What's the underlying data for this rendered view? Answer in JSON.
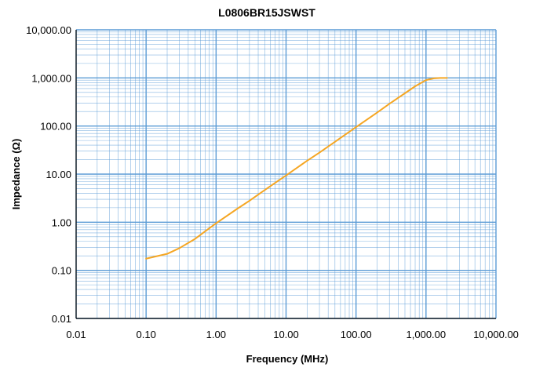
{
  "chart_data": {
    "type": "line",
    "title": "L0806BR15JSWST",
    "xlabel": "Frequency (MHz)",
    "ylabel": "Impedance (Ω)",
    "x_scale": "log",
    "y_scale": "log",
    "xlim": [
      0.01,
      10000
    ],
    "ylim": [
      0.01,
      10000
    ],
    "x_ticks": [
      0.01,
      0.1,
      1,
      10,
      100,
      1000,
      10000
    ],
    "x_tick_labels": [
      "0.01",
      "0.10",
      "1.00",
      "10.00",
      "100.00",
      "1,000.00",
      "10,000.00"
    ],
    "y_ticks": [
      0.01,
      0.1,
      1,
      10,
      100,
      1000,
      10000
    ],
    "y_tick_labels": [
      "0.01",
      "0.10",
      "1.00",
      "10.00",
      "100.00",
      "1,000.00",
      "10,000.00"
    ],
    "grid": true,
    "grid_color": "#5b9bd5",
    "series_color": "#f5a623",
    "series": [
      {
        "x": [
          0.1,
          0.2,
          0.3,
          0.5,
          0.7,
          1,
          2,
          3,
          5,
          7,
          10,
          20,
          30,
          50,
          70,
          100,
          200,
          300,
          500,
          700,
          1000,
          1300,
          1600,
          2000
        ],
        "y": [
          0.175,
          0.22,
          0.29,
          0.45,
          0.65,
          0.95,
          1.9,
          2.8,
          4.7,
          6.6,
          9.4,
          19,
          28,
          47,
          66,
          95,
          190,
          290,
          480,
          670,
          900,
          980,
          1000,
          1000
        ]
      }
    ]
  }
}
